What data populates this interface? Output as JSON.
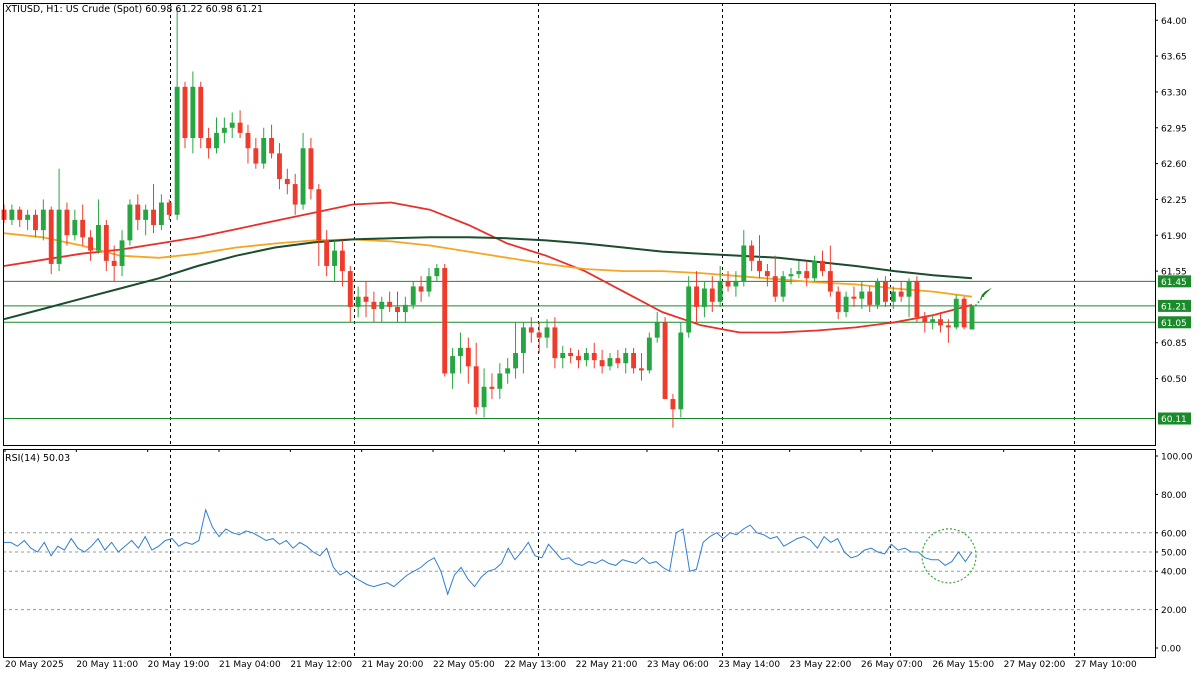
{
  "header": {
    "title": "XTIUSD, H1:  US Crude (Spot)",
    "ohlc": "60.98 61.22 60.98 61.21"
  },
  "rsi_header": {
    "title": "RSI(14) 50.03"
  },
  "colors": {
    "bull": "#26a641",
    "bear": "#ef3b2c",
    "ma_fast": "#e8302a",
    "ma_mid": "#f5a623",
    "ma_slow": "#1b4d2e",
    "hline": "#1a8a2a",
    "label_bg": "#1a8a2a",
    "rsi_line": "#2f7fd0",
    "grid": "#000000"
  },
  "chart_data": [
    {
      "type": "candlestick",
      "title": "XTIUSD, H1: US Crude (Spot)",
      "ylim": [
        59.9,
        64.12
      ],
      "y_ticks": [
        "64.00",
        "63.65",
        "63.30",
        "62.95",
        "62.60",
        "62.25",
        "61.90",
        "61.55",
        "61.21",
        "61.05",
        "60.85",
        "60.50",
        "60.11"
      ],
      "horizontal_levels": [
        {
          "value": 61.45,
          "label": "61.45"
        },
        {
          "value": 61.21,
          "label": "61.21"
        },
        {
          "value": 61.05,
          "label": "61.05"
        },
        {
          "value": 60.11,
          "label": "60.11"
        }
      ],
      "x_ticks": [
        "20 May 2025",
        "20 May 11:00",
        "20 May 19:00",
        "21 May 04:00",
        "21 May 12:00",
        "21 May 20:00",
        "22 May 05:00",
        "22 May 13:00",
        "22 May 21:00",
        "23 May 06:00",
        "23 May 14:00",
        "23 May 22:00",
        "26 May 07:00",
        "26 May 15:00",
        "27 May 02:00",
        "27 May 10:00"
      ],
      "candles": [
        [
          62.15,
          62.2,
          62.02,
          62.05
        ],
        [
          62.05,
          62.2,
          62.0,
          62.15
        ],
        [
          62.15,
          62.18,
          61.98,
          62.05
        ],
        [
          62.05,
          62.15,
          61.95,
          62.1
        ],
        [
          62.1,
          62.15,
          61.88,
          61.95
        ],
        [
          61.95,
          62.25,
          61.85,
          62.15
        ],
        [
          62.15,
          62.18,
          61.52,
          61.62
        ],
        [
          61.62,
          62.55,
          61.55,
          62.15
        ],
        [
          62.15,
          62.22,
          61.8,
          61.9
        ],
        [
          61.9,
          62.15,
          61.85,
          62.05
        ],
        [
          62.05,
          62.2,
          61.8,
          61.88
        ],
        [
          61.88,
          61.95,
          61.65,
          61.75
        ],
        [
          61.75,
          62.25,
          61.72,
          62.0
        ],
        [
          62.0,
          62.05,
          61.55,
          61.65
        ],
        [
          61.65,
          61.8,
          61.45,
          61.6
        ],
        [
          61.6,
          61.95,
          61.5,
          61.85
        ],
        [
          61.85,
          62.25,
          61.8,
          62.2
        ],
        [
          62.2,
          62.3,
          61.95,
          62.05
        ],
        [
          62.05,
          62.2,
          61.9,
          62.15
        ],
        [
          62.15,
          62.4,
          61.92,
          62.0
        ],
        [
          62.0,
          62.3,
          61.95,
          62.22
        ],
        [
          62.22,
          62.25,
          62.05,
          62.1
        ],
        [
          62.1,
          64.12,
          62.05,
          63.35
        ],
        [
          63.35,
          63.4,
          62.75,
          62.85
        ],
        [
          62.85,
          63.5,
          62.7,
          63.35
        ],
        [
          63.35,
          63.4,
          62.75,
          62.85
        ],
        [
          62.85,
          62.95,
          62.65,
          62.75
        ],
        [
          62.75,
          63.05,
          62.7,
          62.9
        ],
        [
          62.9,
          63.05,
          62.8,
          62.95
        ],
        [
          62.95,
          63.1,
          62.85,
          63.0
        ],
        [
          63.0,
          63.12,
          62.85,
          62.9
        ],
        [
          62.9,
          62.98,
          62.6,
          62.75
        ],
        [
          62.75,
          62.85,
          62.55,
          62.6
        ],
        [
          62.6,
          62.95,
          62.55,
          62.85
        ],
        [
          62.85,
          62.98,
          62.65,
          62.7
        ],
        [
          62.7,
          62.8,
          62.35,
          62.45
        ],
        [
          62.45,
          62.55,
          62.3,
          62.4
        ],
        [
          62.4,
          62.5,
          62.1,
          62.2
        ],
        [
          62.2,
          62.9,
          62.15,
          62.75
        ],
        [
          62.75,
          62.85,
          62.25,
          62.35
        ],
        [
          62.35,
          62.4,
          61.6,
          61.85
        ],
        [
          61.85,
          61.95,
          61.5,
          61.6
        ],
        [
          61.6,
          61.85,
          61.45,
          61.75
        ],
        [
          61.75,
          61.85,
          61.4,
          61.55
        ],
        [
          61.55,
          61.6,
          61.05,
          61.2
        ],
        [
          61.2,
          61.4,
          61.1,
          61.3
        ],
        [
          61.3,
          61.45,
          61.1,
          61.25
        ],
        [
          61.25,
          61.35,
          61.05,
          61.18
        ],
        [
          61.18,
          61.3,
          61.05,
          61.25
        ],
        [
          61.25,
          61.35,
          61.15,
          61.2
        ],
        [
          61.2,
          61.35,
          61.05,
          61.15
        ],
        [
          61.15,
          61.3,
          61.05,
          61.22
        ],
        [
          61.22,
          61.45,
          61.18,
          61.4
        ],
        [
          61.4,
          61.5,
          61.25,
          61.35
        ],
        [
          61.35,
          61.58,
          61.3,
          61.5
        ],
        [
          61.5,
          61.62,
          61.45,
          61.58
        ],
        [
          61.58,
          61.62,
          60.52,
          60.55
        ],
        [
          60.55,
          60.8,
          60.4,
          60.72
        ],
        [
          60.72,
          60.95,
          60.55,
          60.8
        ],
        [
          60.8,
          60.9,
          60.45,
          60.62
        ],
        [
          60.62,
          60.85,
          60.15,
          60.22
        ],
        [
          60.22,
          60.6,
          60.12,
          60.42
        ],
        [
          60.42,
          60.55,
          60.3,
          60.4
        ],
        [
          60.4,
          60.65,
          60.3,
          60.55
        ],
        [
          60.55,
          60.7,
          60.45,
          60.6
        ],
        [
          60.6,
          61.05,
          60.5,
          60.75
        ],
        [
          60.75,
          61.05,
          60.55,
          61.0
        ],
        [
          61.0,
          61.1,
          60.85,
          60.95
        ],
        [
          60.95,
          61.05,
          60.75,
          60.9
        ],
        [
          60.9,
          61.08,
          60.8,
          61.0
        ],
        [
          61.0,
          61.1,
          60.6,
          60.7
        ],
        [
          60.7,
          60.82,
          60.6,
          60.75
        ],
        [
          60.75,
          60.8,
          60.65,
          60.72
        ],
        [
          60.72,
          60.78,
          60.6,
          60.68
        ],
        [
          60.68,
          60.8,
          60.62,
          60.75
        ],
        [
          60.75,
          60.85,
          60.6,
          60.68
        ],
        [
          60.68,
          60.78,
          60.55,
          60.62
        ],
        [
          60.62,
          60.75,
          60.58,
          60.7
        ],
        [
          60.7,
          60.78,
          60.6,
          60.65
        ],
        [
          60.65,
          60.8,
          60.55,
          60.75
        ],
        [
          60.75,
          60.8,
          60.55,
          60.6
        ],
        [
          60.6,
          60.75,
          60.48,
          60.58
        ],
        [
          60.58,
          60.95,
          60.55,
          60.9
        ],
        [
          60.9,
          61.15,
          60.85,
          61.05
        ],
        [
          61.05,
          61.1,
          60.3,
          60.3
        ],
        [
          60.3,
          60.35,
          60.02,
          60.2
        ],
        [
          60.2,
          61.05,
          60.12,
          60.95
        ],
        [
          60.95,
          61.5,
          60.9,
          61.4
        ],
        [
          61.4,
          61.55,
          61.05,
          61.2
        ],
        [
          61.2,
          61.45,
          61.1,
          61.38
        ],
        [
          61.38,
          61.5,
          61.15,
          61.25
        ],
        [
          61.25,
          61.6,
          61.2,
          61.45
        ],
        [
          61.45,
          61.55,
          61.35,
          61.4
        ],
        [
          61.4,
          61.55,
          61.3,
          61.45
        ],
        [
          61.45,
          61.95,
          61.4,
          61.8
        ],
        [
          61.8,
          61.85,
          61.55,
          61.65
        ],
        [
          61.65,
          61.9,
          61.48,
          61.55
        ],
        [
          61.55,
          61.62,
          61.4,
          61.5
        ],
        [
          61.5,
          61.7,
          61.25,
          61.3
        ],
        [
          61.3,
          61.55,
          61.25,
          61.5
        ],
        [
          61.5,
          61.58,
          61.42,
          61.52
        ],
        [
          61.52,
          61.65,
          61.48,
          61.55
        ],
        [
          61.55,
          61.65,
          61.4,
          61.48
        ],
        [
          61.48,
          61.7,
          61.45,
          61.65
        ],
        [
          61.65,
          61.75,
          61.5,
          61.55
        ],
        [
          61.55,
          61.8,
          61.3,
          61.35
        ],
        [
          61.35,
          61.4,
          61.08,
          61.15
        ],
        [
          61.15,
          61.35,
          61.1,
          61.3
        ],
        [
          61.3,
          61.4,
          61.2,
          61.28
        ],
        [
          61.28,
          61.45,
          61.18,
          61.35
        ],
        [
          61.35,
          61.4,
          61.15,
          61.22
        ],
        [
          61.22,
          61.48,
          61.18,
          61.45
        ],
        [
          61.45,
          61.5,
          61.2,
          61.25
        ],
        [
          61.25,
          61.4,
          61.18,
          61.35
        ],
        [
          61.35,
          61.45,
          61.25,
          61.3
        ],
        [
          61.3,
          61.48,
          61.1,
          61.45
        ],
        [
          61.45,
          61.5,
          61.05,
          61.1
        ],
        [
          61.1,
          61.15,
          60.95,
          61.05
        ],
        [
          61.05,
          61.12,
          60.98,
          61.08
        ],
        [
          61.08,
          61.15,
          60.95,
          61.02
        ],
        [
          61.02,
          61.08,
          60.85,
          61.0
        ],
        [
          61.0,
          61.32,
          60.98,
          61.28
        ],
        [
          61.28,
          61.3,
          60.98,
          61.0
        ],
        [
          60.98,
          61.22,
          60.98,
          61.21
        ]
      ],
      "series": [
        {
          "name": "MA fast (red)",
          "values": [
            61.6,
            61.66,
            61.72,
            61.76,
            61.82,
            61.88,
            61.96,
            62.04,
            62.12,
            62.2,
            62.22,
            62.15,
            62.0,
            61.82,
            61.7,
            61.55,
            61.35,
            61.15,
            61.02,
            60.95,
            60.95,
            60.97,
            61.0,
            61.05,
            61.12,
            61.22
          ]
        },
        {
          "name": "MA mid (orange)",
          "values": [
            61.92,
            61.88,
            61.8,
            61.7,
            61.68,
            61.72,
            61.78,
            61.82,
            61.85,
            61.86,
            61.84,
            61.8,
            61.74,
            61.68,
            61.62,
            61.57,
            61.55,
            61.55,
            61.53,
            61.5,
            61.47,
            61.44,
            61.42,
            61.38,
            61.35,
            61.3
          ]
        },
        {
          "name": "MA slow (dark green)",
          "values": [
            61.08,
            61.18,
            61.28,
            61.38,
            61.48,
            61.6,
            61.7,
            61.78,
            61.83,
            61.86,
            61.87,
            61.88,
            61.88,
            61.87,
            61.85,
            61.82,
            61.78,
            61.74,
            61.72,
            61.7,
            61.68,
            61.64,
            61.6,
            61.55,
            61.51,
            61.48
          ]
        }
      ]
    },
    {
      "type": "line",
      "title": "RSI(14) 50.03",
      "ylim": [
        0,
        100
      ],
      "y_ticks": [
        "100.00",
        "80.00",
        "60.00",
        "50.00",
        "40.00",
        "20.00",
        "0.00"
      ],
      "dashed_levels": [
        60,
        50,
        40,
        20
      ],
      "values": [
        55,
        55,
        53,
        56,
        52,
        50,
        55,
        48,
        53,
        51,
        57,
        52,
        50,
        53,
        57,
        51,
        55,
        50,
        53,
        56,
        52,
        58,
        51,
        53,
        56,
        57,
        53,
        55,
        54,
        56,
        72,
        63,
        58,
        62,
        60,
        59,
        61,
        60,
        58,
        56,
        57,
        54,
        56,
        52,
        55,
        53,
        50,
        48,
        52,
        42,
        38,
        40,
        37,
        35,
        33,
        32,
        33,
        34,
        32,
        35,
        38,
        40,
        42,
        45,
        47,
        40,
        28,
        38,
        42,
        36,
        32,
        37,
        40,
        41,
        44,
        52,
        46,
        50,
        55,
        48,
        47,
        54,
        50,
        46,
        47,
        44,
        43,
        45,
        44,
        46,
        44,
        43,
        46,
        45,
        44,
        47,
        44,
        45,
        42,
        40,
        60,
        62,
        40,
        41,
        55,
        58,
        60,
        57,
        60,
        59,
        62,
        64,
        60,
        59,
        57,
        58,
        53,
        55,
        57,
        58,
        56,
        52,
        58,
        55,
        57,
        50,
        47,
        48,
        51,
        52,
        50,
        49,
        54,
        51,
        52,
        50,
        50,
        47,
        46,
        46,
        43,
        45,
        50,
        45,
        50
      ],
      "highlight_circle": "last bars"
    }
  ]
}
